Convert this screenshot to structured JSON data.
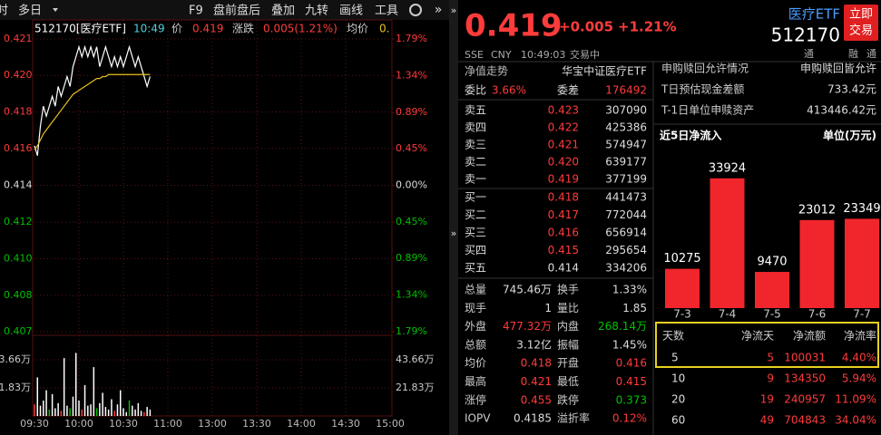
{
  "toolbar": {
    "items": [
      "时",
      "多日",
      "F9",
      "盘前盘后",
      "叠加",
      "九转",
      "画线",
      "工具"
    ]
  },
  "info": {
    "symbol": "512170[医疗ETF]",
    "time": "10:49",
    "price_label": "价",
    "price": "0.419",
    "change_label": "涨跌",
    "change": "0.005(1.21%)",
    "avg_label": "均价",
    "avg": "0."
  },
  "intraday_chart": {
    "type": "line",
    "x_labels": [
      "09:30",
      "10:00",
      "10:30",
      "11:00",
      "13:00",
      "13:30",
      "14:00",
      "14:30",
      "15:00"
    ],
    "series": [
      {
        "color": "#ffffff",
        "values": [
          0.416,
          0.4155,
          0.417,
          0.418,
          0.4175,
          0.418,
          0.4185,
          0.418,
          0.419,
          0.4185,
          0.419,
          0.4195,
          0.419,
          0.42,
          0.4205,
          0.421,
          0.4205,
          0.421,
          0.4205,
          0.421,
          0.4205,
          0.421,
          0.42,
          0.4205,
          0.421,
          0.4205,
          0.42,
          0.4205,
          0.42,
          0.4205,
          0.42,
          0.4205,
          0.421,
          0.4205,
          0.42,
          0.4205,
          0.42,
          0.4195,
          0.419,
          0.4195
        ]
      },
      {
        "color": "#e8c020",
        "values": [
          0.4158,
          0.416,
          0.4163,
          0.4166,
          0.4168,
          0.417,
          0.4172,
          0.4174,
          0.4176,
          0.4178,
          0.418,
          0.4182,
          0.4184,
          0.4186,
          0.4187,
          0.4188,
          0.4189,
          0.419,
          0.4191,
          0.4192,
          0.4193,
          0.4194,
          0.4194,
          0.4195,
          0.4195,
          0.4196,
          0.4196,
          0.4196,
          0.4196,
          0.4196,
          0.4196,
          0.4196,
          0.4196,
          0.4196,
          0.4196,
          0.4196,
          0.4196,
          0.4196,
          0.4196,
          0.4196
        ]
      }
    ],
    "ylim": [
      0.4066,
      0.4214
    ],
    "yticks": [
      {
        "value": 0.4214,
        "label": "0.421"
      },
      {
        "value": 0.41956,
        "label": "0.420"
      },
      {
        "value": 0.41771,
        "label": "0.418"
      },
      {
        "value": 0.41586,
        "label": "0.416"
      },
      {
        "value": 0.414,
        "label": "0.414"
      },
      {
        "value": 0.41214,
        "label": "0.412"
      },
      {
        "value": 0.41029,
        "label": "0.410"
      },
      {
        "value": 0.40844,
        "label": "0.408"
      },
      {
        "value": 0.4066,
        "label": "0.407"
      }
    ],
    "y2lim": [
      -1.79,
      1.79
    ],
    "y2ticks": [
      {
        "value": 1.79,
        "label": "1.79%"
      },
      {
        "value": 1.34,
        "label": "1.34%"
      },
      {
        "value": 0.89,
        "label": "0.89%"
      },
      {
        "value": 0.45,
        "label": "0.45%"
      },
      {
        "value": 0,
        "label": "0.00%"
      },
      {
        "value": -0.45,
        "label": "0.45%"
      },
      {
        "value": -0.89,
        "label": "0.89%"
      },
      {
        "value": -1.34,
        "label": "1.34%"
      },
      {
        "value": -1.79,
        "label": "1.79%"
      }
    ],
    "grid": true,
    "volume": {
      "values": [
        9,
        30,
        8,
        12,
        20,
        5,
        17,
        6,
        10,
        4,
        45,
        8,
        6,
        15,
        49,
        12,
        5,
        24,
        8,
        9,
        38,
        6,
        10,
        18,
        7,
        5,
        13,
        4,
        9,
        20,
        6,
        3,
        12,
        8,
        5,
        10,
        4,
        3,
        7,
        5
      ],
      "colors": [
        "#ff3b3b",
        "#ffffff",
        "#ffffff",
        "#ffffff",
        "#ffffff",
        "#00c000",
        "#ffffff",
        "#ffffff",
        "#ffffff",
        "#ff3b3b",
        "#ffffff",
        "#ffffff",
        "#00c000",
        "#ffffff",
        "#ffffff",
        "#ffffff",
        "#ff3b3b",
        "#ffffff",
        "#ffffff",
        "#ffffff",
        "#ffffff",
        "#00c000",
        "#ffffff",
        "#ffffff",
        "#ffffff",
        "#ffffff",
        "#ffffff",
        "#ff3b3b",
        "#ffffff",
        "#ffffff",
        "#ffffff",
        "#ffffff",
        "#00c000",
        "#ffffff",
        "#ffffff",
        "#ffffff",
        "#ffffff",
        "#ff3b3b",
        "#ffffff",
        "#ffffff"
      ],
      "ylim": [
        0,
        62.7
      ],
      "yticks": [
        {
          "value": 43.66,
          "label": "43.66万"
        },
        {
          "value": 21.83,
          "label": "21.83万"
        }
      ]
    }
  },
  "quote": {
    "price": "0.419",
    "change": "+0.005",
    "change_pct": "+1.21%",
    "exchange": "SSE",
    "currency": "CNY",
    "time": "10:49:03",
    "status": "交易中",
    "name": "医疗ETF",
    "code": "512170",
    "button": [
      "立即",
      "交易"
    ],
    "badges": [
      "通",
      "融",
      "通"
    ]
  },
  "tabs": [
    "净值走势",
    "华宝中证医疗ETF"
  ],
  "order_book": {
    "ratio_label": "委比",
    "ratio": "3.66%",
    "diff_label": "委差",
    "diff": "176492",
    "asks": [
      {
        "label": "卖五",
        "price": "0.423",
        "volume": "307090"
      },
      {
        "label": "卖四",
        "price": "0.422",
        "volume": "425386"
      },
      {
        "label": "卖三",
        "price": "0.421",
        "volume": "574947"
      },
      {
        "label": "卖二",
        "price": "0.420",
        "volume": "639177"
      },
      {
        "label": "卖一",
        "price": "0.419",
        "volume": "377199"
      }
    ],
    "bids": [
      {
        "label": "买一",
        "price": "0.418",
        "volume": "441473"
      },
      {
        "label": "买二",
        "price": "0.417",
        "volume": "772044"
      },
      {
        "label": "买三",
        "price": "0.416",
        "volume": "656914"
      },
      {
        "label": "买四",
        "price": "0.415",
        "volume": "295654"
      },
      {
        "label": "买五",
        "price": "0.414",
        "volume": "334206"
      }
    ],
    "price_colors": [
      "#ff3b3b",
      "#ff3b3b",
      "#ff3b3b",
      "#ff3b3b",
      "#ff3b3b",
      "#ff3b3b",
      "#ff3b3b",
      "#ff3b3b",
      "#ff3b3b",
      "#dddddd"
    ]
  },
  "stats": [
    [
      {
        "label": "总量",
        "value": "745.46万",
        "color": "#dddddd"
      },
      {
        "label": "换手",
        "value": "1.33%",
        "color": "#dddddd"
      }
    ],
    [
      {
        "label": "现手",
        "value": "1",
        "color": "#dddddd"
      },
      {
        "label": "量比",
        "value": "1.85",
        "color": "#dddddd"
      }
    ],
    [
      {
        "label": "外盘",
        "value": "477.32万",
        "color": "#ff3b3b"
      },
      {
        "label": "内盘",
        "value": "268.14万",
        "color": "#00c000"
      }
    ],
    [
      {
        "label": "总额",
        "value": "3.12亿",
        "color": "#dddddd"
      },
      {
        "label": "振幅",
        "value": "1.45%",
        "color": "#dddddd"
      }
    ],
    [
      {
        "label": "均价",
        "value": "0.418",
        "color": "#ff3b3b"
      },
      {
        "label": "开盘",
        "value": "0.416",
        "color": "#ff3b3b"
      }
    ],
    [
      {
        "label": "最高",
        "value": "0.421",
        "color": "#ff3b3b"
      },
      {
        "label": "最低",
        "value": "0.415",
        "color": "#ff3b3b"
      }
    ],
    [
      {
        "label": "涨停",
        "value": "0.455",
        "color": "#ff3b3b"
      },
      {
        "label": "跌停",
        "value": "0.373",
        "color": "#00c000"
      }
    ],
    [
      {
        "label": "IOPV",
        "value": "0.4185",
        "color": "#dddddd"
      },
      {
        "label": "溢折率",
        "value": "0.12%",
        "color": "#ff3b3b"
      }
    ]
  ],
  "redemption": [
    {
      "label": "申购赎回允许情况",
      "value": "申购赎回皆允许"
    },
    {
      "label": "T日预估现金差额",
      "value": "733.42元"
    },
    {
      "label": "T-1日单位申赎资产",
      "value": "413446.42元"
    }
  ],
  "inflow_chart": {
    "type": "bar",
    "title": "近5日净流入",
    "unit": "单位(万元)",
    "categories": [
      "7-3",
      "7-4",
      "7-5",
      "7-6",
      "7-7"
    ],
    "values": [
      10275,
      33924,
      9470,
      23012,
      23349
    ],
    "color": "#f0262c",
    "ylim": [
      0,
      36000
    ]
  },
  "flow_table": {
    "header": [
      "天数",
      "净流天",
      "净流额",
      "净流率"
    ],
    "rows": [
      [
        "5",
        "5",
        "100031",
        "4.40%"
      ],
      [
        "10",
        "9",
        "134350",
        "5.94%"
      ],
      [
        "20",
        "19",
        "240957",
        "11.09%"
      ],
      [
        "60",
        "49",
        "704843",
        "34.04%"
      ]
    ]
  }
}
